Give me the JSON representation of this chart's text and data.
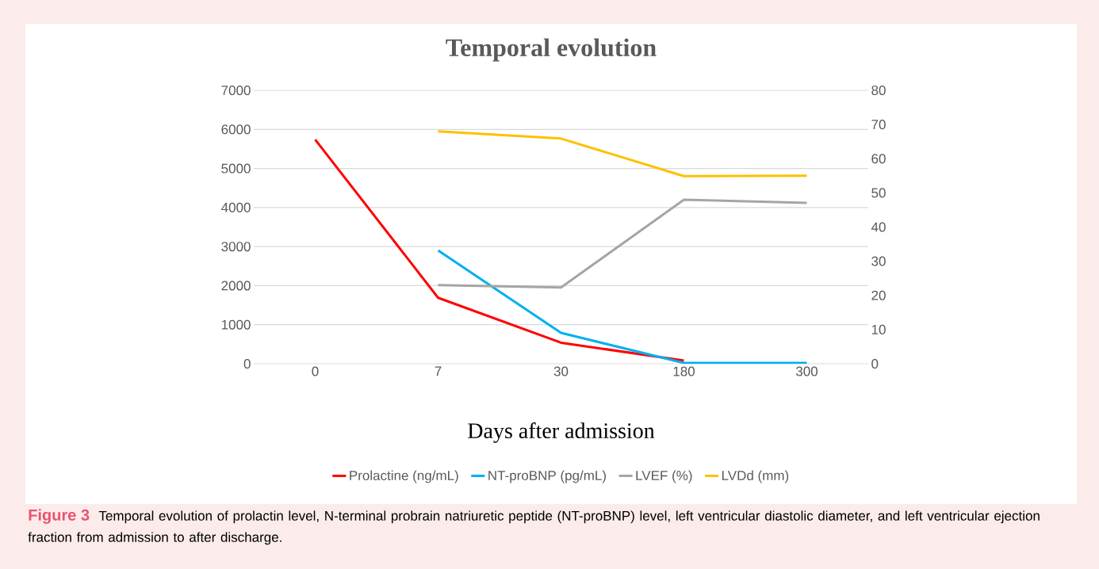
{
  "chart_data": {
    "type": "line",
    "title": "Temporal evolution",
    "xlabel": "Days after admission",
    "categories": [
      "0",
      "7",
      "30",
      "180",
      "300"
    ],
    "series": [
      {
        "name": "Prolactine (ng/mL)",
        "color": "#ff0000",
        "values": [
          5740,
          1690,
          540,
          80,
          null
        ]
      },
      {
        "name": "NT-proBNP (pg/mL)",
        "color": "#00b0f0",
        "values": [
          null,
          2900,
          790,
          20,
          20
        ]
      },
      {
        "name": "LVEF (%)",
        "color": "#a5a5a5",
        "axis": "y2",
        "values": [
          null,
          23,
          22.3,
          48,
          47.1
        ]
      },
      {
        "name": "LVDd (mm)",
        "color": "#ffc000",
        "axis": "y2",
        "values": [
          null,
          68,
          65.9,
          54.9,
          55
        ]
      }
    ],
    "ylim": [
      0,
      7000
    ],
    "yticks": [
      0,
      1000,
      2000,
      3000,
      4000,
      5000,
      6000,
      7000
    ],
    "y2lim": [
      0,
      80
    ],
    "y2ticks": [
      0,
      10,
      20,
      30,
      40,
      50,
      60,
      70,
      80
    ],
    "grid": "y",
    "legend": "bottom",
    "line_style": "solid",
    "annotations": [
      "Figure 3",
      "Temporal evolution of prolactin level, N-terminal probrain natriuretic peptide (NT-proBNP) level, left ventricular diastolic diameter, and left ventricular ejection fraction from admission to after discharge."
    ]
  }
}
